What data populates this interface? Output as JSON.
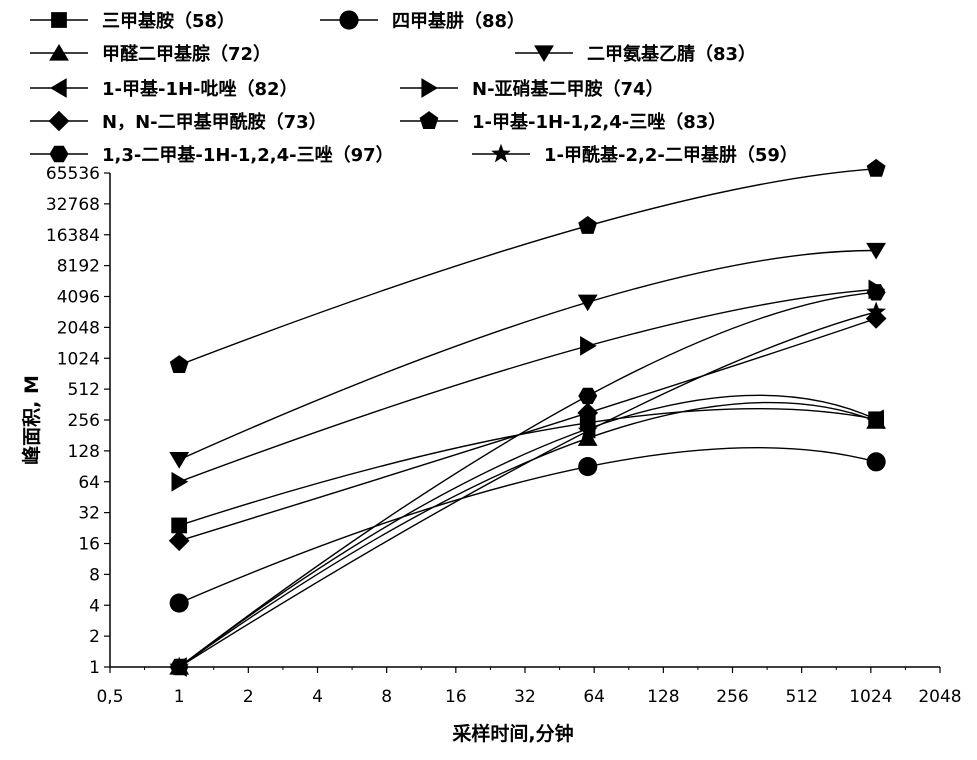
{
  "chart_data": {
    "type": "line",
    "title": "",
    "xlabel": "采样时间,分钟",
    "ylabel": "峰面积, M",
    "x_scale": "log2",
    "y_scale": "log2",
    "xlim": [
      0.5,
      2048
    ],
    "ylim": [
      1,
      65536
    ],
    "x_ticks": [
      "0,5",
      "1",
      "2",
      "4",
      "8",
      "16",
      "32",
      "64",
      "128",
      "256",
      "512",
      "1024",
      "2048"
    ],
    "y_ticks": [
      "1",
      "2",
      "4",
      "8",
      "16",
      "32",
      "64",
      "128",
      "256",
      "512",
      "1024",
      "2048",
      "4096",
      "8192",
      "16384",
      "32768",
      "65536"
    ],
    "grid": false,
    "legend_position": "top",
    "x": [
      1,
      60,
      1080
    ],
    "series": [
      {
        "name": "三甲基胺（58）",
        "marker": "square",
        "values": [
          24,
          240,
          260
        ]
      },
      {
        "name": "四甲基肼（88）",
        "marker": "circle",
        "values": [
          4.2,
          90,
          100
        ]
      },
      {
        "name": "甲醛二甲基腙（72）",
        "marker": "triangle-up",
        "values": [
          1,
          170,
          250
        ]
      },
      {
        "name": "二甲氨基乙腈（83）",
        "marker": "triangle-down",
        "values": [
          105,
          3600,
          11500
        ]
      },
      {
        "name": "1-甲基-1H-吡唑（82）",
        "marker": "triangle-left",
        "values": [
          1,
          210,
          260
        ]
      },
      {
        "name": "N-亚硝基二甲胺（74）",
        "marker": "triangle-right",
        "values": [
          64,
          1350,
          4800
        ]
      },
      {
        "name": "N，N-二甲基甲酰胺（73）",
        "marker": "diamond",
        "values": [
          17,
          300,
          2500
        ]
      },
      {
        "name": "1-甲基-1H-1,2,4-三唑（83）",
        "marker": "pentagon",
        "values": [
          880,
          20000,
          72000
        ]
      },
      {
        "name": "1,3-二甲基-1H-1,2,4-三唑（97）",
        "marker": "hexagon",
        "values": [
          1,
          440,
          4500
        ]
      },
      {
        "name": "1-甲酰基-2,2-二甲基肼（59）",
        "marker": "star",
        "values": [
          1,
          200,
          2900
        ]
      }
    ]
  }
}
